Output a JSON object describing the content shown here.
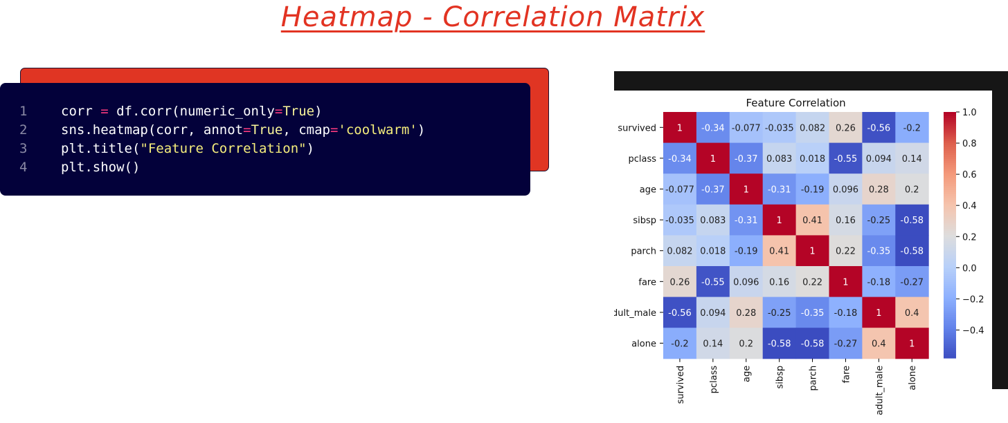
{
  "page": {
    "title": "Heatmap - Correlation Matrix"
  },
  "code": {
    "lines": [
      {
        "num": "1",
        "parts": [
          {
            "t": "corr ",
            "c": "plain"
          },
          {
            "t": "=",
            "c": "op"
          },
          {
            "t": " df.corr(numeric_only",
            "c": "plain"
          },
          {
            "t": "=",
            "c": "op"
          },
          {
            "t": "True",
            "c": "kw"
          },
          {
            "t": ")",
            "c": "plain"
          }
        ]
      },
      {
        "num": "2",
        "parts": [
          {
            "t": "sns.heatmap(corr, annot",
            "c": "plain"
          },
          {
            "t": "=",
            "c": "op"
          },
          {
            "t": "True",
            "c": "kw"
          },
          {
            "t": ", cmap",
            "c": "plain"
          },
          {
            "t": "=",
            "c": "op"
          },
          {
            "t": "'coolwarm'",
            "c": "str"
          },
          {
            "t": ")",
            "c": "plain"
          }
        ]
      },
      {
        "num": "3",
        "parts": [
          {
            "t": "plt.title(",
            "c": "plain"
          },
          {
            "t": "\"Feature Correlation\"",
            "c": "str"
          },
          {
            "t": ")",
            "c": "plain"
          }
        ]
      },
      {
        "num": "4",
        "parts": [
          {
            "t": "plt.show()",
            "c": "plain"
          }
        ]
      }
    ]
  },
  "chart_data": {
    "type": "heatmap",
    "title": "Feature Correlation",
    "colormap": "coolwarm",
    "x_labels": [
      "survived",
      "pclass",
      "age",
      "sibsp",
      "parch",
      "fare",
      "adult_male",
      "alone"
    ],
    "y_labels": [
      "survived",
      "pclass",
      "age",
      "sibsp",
      "parch",
      "fare",
      "adult_male",
      "alone"
    ],
    "values": [
      [
        1,
        -0.34,
        -0.077,
        -0.035,
        0.082,
        0.26,
        -0.56,
        -0.2
      ],
      [
        -0.34,
        1,
        -0.37,
        0.083,
        0.018,
        -0.55,
        0.094,
        0.14
      ],
      [
        -0.077,
        -0.37,
        1,
        -0.31,
        -0.19,
        0.096,
        0.28,
        0.2
      ],
      [
        -0.035,
        0.083,
        -0.31,
        1,
        0.41,
        0.16,
        -0.25,
        -0.58
      ],
      [
        0.082,
        0.018,
        -0.19,
        0.41,
        1,
        0.22,
        -0.35,
        -0.58
      ],
      [
        0.26,
        -0.55,
        0.096,
        0.16,
        0.22,
        1,
        -0.18,
        -0.27
      ],
      [
        -0.56,
        0.094,
        0.28,
        -0.25,
        -0.35,
        -0.18,
        1,
        0.4
      ],
      [
        -0.2,
        0.14,
        0.2,
        -0.58,
        -0.58,
        -0.27,
        0.4,
        1
      ]
    ],
    "annotations": [
      [
        "1",
        "-0.34",
        "-0.077",
        "-0.035",
        "0.082",
        "0.26",
        "-0.56",
        "-0.2"
      ],
      [
        "-0.34",
        "1",
        "-0.37",
        "0.083",
        "0.018",
        "-0.55",
        "0.094",
        "0.14"
      ],
      [
        "-0.077",
        "-0.37",
        "1",
        "-0.31",
        "-0.19",
        "0.096",
        "0.28",
        "0.2"
      ],
      [
        "-0.035",
        "0.083",
        "-0.31",
        "1",
        "0.41",
        "0.16",
        "-0.25",
        "-0.58"
      ],
      [
        "0.082",
        "0.018",
        "-0.19",
        "0.41",
        "1",
        "0.22",
        "-0.35",
        "-0.58"
      ],
      [
        "0.26",
        "-0.55",
        "0.096",
        "0.16",
        "0.22",
        "1",
        "-0.18",
        "-0.27"
      ],
      [
        "-0.56",
        "0.094",
        "0.28",
        "-0.25",
        "-0.35",
        "-0.18",
        "1",
        "0.4"
      ],
      [
        "-0.2",
        "0.14",
        "0.2",
        "-0.58",
        "-0.58",
        "-0.27",
        "0.4",
        "1"
      ]
    ],
    "colorbar": {
      "vmin": -0.58,
      "vmax": 1.0,
      "ticks": [
        1.0,
        0.8,
        0.6,
        0.4,
        0.2,
        0.0,
        -0.2,
        -0.4
      ],
      "tick_labels": [
        "1.0",
        "0.8",
        "0.6",
        "0.4",
        "0.2",
        "0.0",
        "−0.2",
        "−0.4"
      ]
    }
  }
}
